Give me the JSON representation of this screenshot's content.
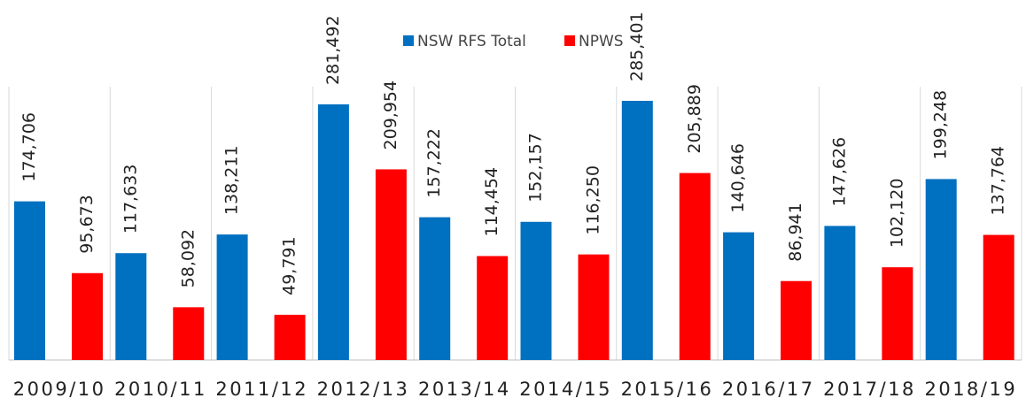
{
  "chart_data": {
    "type": "bar",
    "categories": [
      "2009/10",
      "2010/11",
      "2011/12",
      "2012/13",
      "2013/14",
      "2014/15",
      "2015/16",
      "2016/17",
      "2017/18",
      "2018/19"
    ],
    "series": [
      {
        "name": "NSW RFS Total",
        "color": "#0070c0",
        "values": [
          174706,
          117633,
          138211,
          281492,
          157222,
          152157,
          285401,
          140646,
          147626,
          199248
        ],
        "value_labels": [
          "174,706",
          "117,633",
          "138,211",
          "281,492",
          "157,222",
          "152,157",
          "285,401",
          "140,646",
          "147,626",
          "199,248"
        ]
      },
      {
        "name": "NPWS",
        "color": "#ff0000",
        "values": [
          95673,
          58092,
          49791,
          209954,
          114454,
          116250,
          205889,
          86941,
          102120,
          137764
        ],
        "value_labels": [
          "95,673",
          "58,092",
          "49,791",
          "209,954",
          "114,454",
          "116,250",
          "205,889",
          "86,941",
          "102,120",
          "137,764"
        ]
      }
    ],
    "ylim": [
      0,
      300000
    ],
    "legend": "top"
  }
}
